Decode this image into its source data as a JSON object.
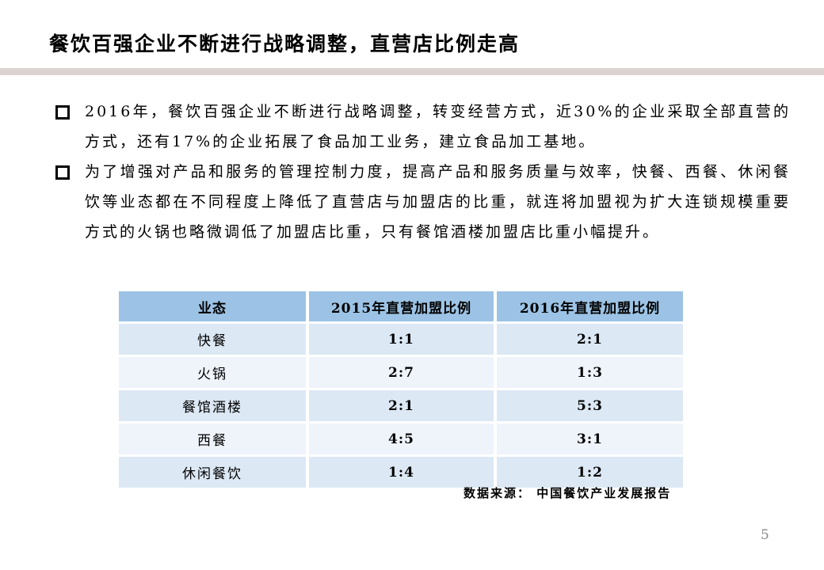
{
  "slide": {
    "title": "餐饮百强企业不断进行战略调整，直营店比例走高",
    "bullets": [
      "2016年，餐饮百强企业不断进行战略调整，转变经营方式，近30%的企业采取全部直营的方式，还有17%的企业拓展了食品加工业务，建立食品加工基地。",
      "为了增强对产品和服务的管理控制力度，提高产品和服务质量与效率，快餐、西餐、休闲餐饮等业态都在不同程度上降低了直营店与加盟店的比重，就连将加盟视为扩大连锁规模重要方式的火锅也略微调低了加盟店比重，只有餐馆酒楼加盟店比重小幅提升。"
    ],
    "source": "数据来源： 中国餐饮产业发展报告",
    "page_number": "5"
  },
  "table": {
    "headers": [
      "业态",
      "2015年直营加盟比例",
      "2016年直营加盟比例"
    ],
    "rows": [
      [
        "快餐",
        "1:1",
        "2:1"
      ],
      [
        "火锅",
        "2:7",
        "1:3"
      ],
      [
        "餐馆酒楼",
        "2:1",
        "5:3"
      ],
      [
        "西餐",
        "4:5",
        "3:1"
      ],
      [
        "休闲餐饮",
        "1:4",
        "1:2"
      ]
    ]
  },
  "colors": {
    "header_bg": "#9CC3E5",
    "row_odd": "#DCE8F4",
    "row_even": "#EFF4FB",
    "divider_bar": "#DCD3D1",
    "page_number_text": "#8A8A8A"
  }
}
